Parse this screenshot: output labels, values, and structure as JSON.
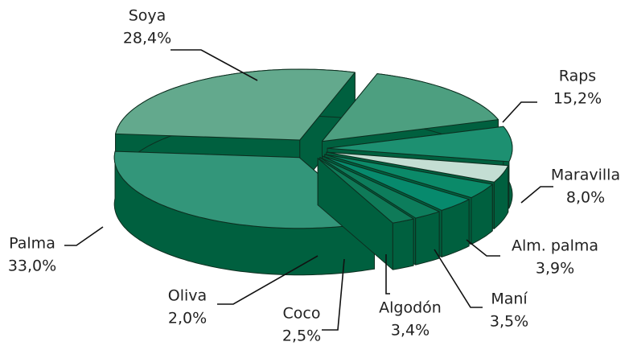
{
  "chart_data": {
    "type": "pie3d",
    "categories": [
      "Soya",
      "Raps",
      "Maravilla",
      "Alm. palma",
      "Maní",
      "Algodón",
      "Coco",
      "Oliva",
      "Palma"
    ],
    "values": [
      28.4,
      15.2,
      8.0,
      3.9,
      3.5,
      3.4,
      2.5,
      2.0,
      33.0
    ],
    "value_labels": [
      "28,4%",
      "15,2%",
      "8,0%",
      "3,9%",
      "3,5%",
      "3,4%",
      "2,5%",
      "2,0%",
      "33,0%"
    ],
    "colors": [
      "#63a98d",
      "#4d9f80",
      "#1d9071",
      "#c4ded3",
      "#0b8a69",
      "#078a6d",
      "#0d7d5c",
      "#0f7a58",
      "#33967a"
    ],
    "side_color": "#00603f"
  }
}
